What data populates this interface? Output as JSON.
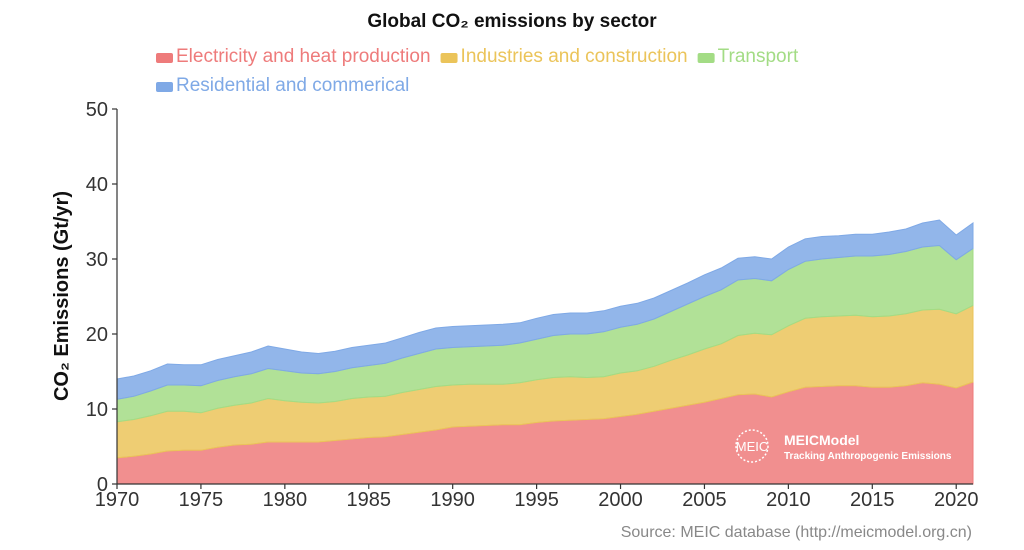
{
  "chart_data": {
    "type": "area",
    "stacked": true,
    "title": "Global CO₂ emissions by sector",
    "ylabel": "CO₂ Emissions (Gt/yr)",
    "xlabel": "",
    "ylim": [
      0,
      50
    ],
    "xlim": [
      1970,
      2021
    ],
    "x_ticks": [
      1970,
      1975,
      1980,
      1985,
      1990,
      1995,
      2000,
      2005,
      2010,
      2015,
      2020
    ],
    "y_ticks": [
      0,
      10,
      20,
      30,
      40,
      50
    ],
    "grid": false,
    "legend_position": "top",
    "x": [
      1970,
      1971,
      1972,
      1973,
      1974,
      1975,
      1976,
      1977,
      1978,
      1979,
      1980,
      1981,
      1982,
      1983,
      1984,
      1985,
      1986,
      1987,
      1988,
      1989,
      1990,
      1991,
      1992,
      1993,
      1994,
      1995,
      1996,
      1997,
      1998,
      1999,
      2000,
      2001,
      2002,
      2003,
      2004,
      2005,
      2006,
      2007,
      2008,
      2009,
      2010,
      2011,
      2012,
      2013,
      2014,
      2015,
      2016,
      2017,
      2018,
      2019,
      2020,
      2021
    ],
    "series": [
      {
        "name": "Electricity and heat production",
        "color": "#ee7b7b",
        "values": [
          3.5,
          3.7,
          4.0,
          4.4,
          4.5,
          4.5,
          4.9,
          5.2,
          5.3,
          5.6,
          5.6,
          5.6,
          5.6,
          5.8,
          6.0,
          6.2,
          6.3,
          6.6,
          6.9,
          7.2,
          7.6,
          7.7,
          7.8,
          7.9,
          7.9,
          8.2,
          8.4,
          8.5,
          8.6,
          8.7,
          9.0,
          9.3,
          9.7,
          10.1,
          10.5,
          10.9,
          11.4,
          11.9,
          12.0,
          11.6,
          12.3,
          12.9,
          13.0,
          13.1,
          13.1,
          12.9,
          12.9,
          13.1,
          13.5,
          13.3,
          12.8,
          13.6
        ]
      },
      {
        "name": "Industries and construction",
        "color": "#ebc45a",
        "values": [
          4.8,
          4.9,
          5.1,
          5.3,
          5.2,
          5.0,
          5.2,
          5.3,
          5.5,
          5.8,
          5.5,
          5.3,
          5.2,
          5.2,
          5.4,
          5.4,
          5.4,
          5.6,
          5.7,
          5.8,
          5.6,
          5.6,
          5.5,
          5.4,
          5.6,
          5.7,
          5.8,
          5.8,
          5.6,
          5.6,
          5.8,
          5.8,
          6.0,
          6.4,
          6.7,
          7.1,
          7.3,
          7.9,
          8.1,
          8.3,
          8.8,
          9.2,
          9.3,
          9.3,
          9.4,
          9.4,
          9.5,
          9.6,
          9.7,
          10.0,
          9.9,
          10.2
        ]
      },
      {
        "name": "Transport",
        "color": "#a3dc85",
        "values": [
          3.0,
          3.1,
          3.3,
          3.5,
          3.5,
          3.6,
          3.7,
          3.8,
          3.9,
          4.0,
          4.0,
          3.9,
          3.9,
          4.0,
          4.1,
          4.2,
          4.4,
          4.6,
          4.8,
          5.0,
          5.0,
          5.0,
          5.1,
          5.2,
          5.3,
          5.4,
          5.6,
          5.7,
          5.8,
          6.0,
          6.1,
          6.2,
          6.3,
          6.5,
          6.8,
          7.0,
          7.2,
          7.4,
          7.3,
          7.2,
          7.5,
          7.6,
          7.7,
          7.8,
          7.9,
          8.1,
          8.2,
          8.3,
          8.4,
          8.5,
          7.2,
          7.6
        ]
      },
      {
        "name": "Residential and commerical",
        "color": "#7fa9e6",
        "values": [
          2.7,
          2.7,
          2.7,
          2.8,
          2.7,
          2.8,
          2.8,
          2.8,
          2.9,
          3.0,
          2.9,
          2.8,
          2.7,
          2.7,
          2.7,
          2.7,
          2.7,
          2.7,
          2.8,
          2.8,
          2.8,
          2.8,
          2.8,
          2.8,
          2.7,
          2.8,
          2.8,
          2.8,
          2.8,
          2.8,
          2.8,
          2.8,
          2.8,
          2.8,
          2.8,
          2.9,
          2.9,
          2.9,
          2.9,
          2.9,
          3.0,
          3.0,
          3.0,
          2.9,
          2.9,
          2.9,
          3.0,
          3.0,
          3.2,
          3.4,
          3.3,
          3.4
        ]
      }
    ],
    "source": "Source: MEIC database (http://meicmodel.org.cn)",
    "watermark": {
      "logo": "MEIC",
      "name": "MEICModel",
      "tagline": "Tracking Anthropogenic Emissions"
    }
  }
}
